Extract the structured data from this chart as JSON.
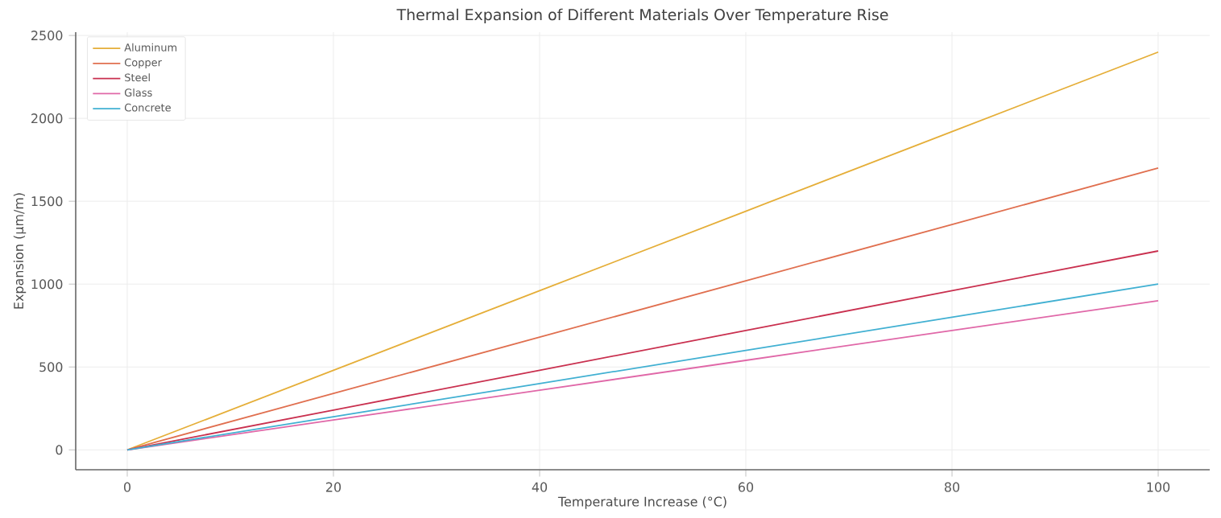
{
  "chart_data": {
    "type": "line",
    "title": "Thermal Expansion of Different Materials Over Temperature Rise",
    "xlabel": "Temperature Increase (°C)",
    "ylabel": "Expansion (µm/m)",
    "x": [
      0,
      20,
      40,
      60,
      80,
      100
    ],
    "series": [
      {
        "name": "Aluminum",
        "color": "#e5ae38",
        "values": [
          0,
          480,
          960,
          1440,
          1920,
          2400
        ]
      },
      {
        "name": "Copper",
        "color": "#e06f4f",
        "values": [
          0,
          340,
          680,
          1020,
          1360,
          1700
        ]
      },
      {
        "name": "Steel",
        "color": "#c9304f",
        "values": [
          0,
          240,
          480,
          720,
          960,
          1200
        ]
      },
      {
        "name": "Glass",
        "color": "#e068a8",
        "values": [
          0,
          180,
          360,
          540,
          720,
          900
        ]
      },
      {
        "name": "Concrete",
        "color": "#41b0d2",
        "values": [
          0,
          200,
          400,
          600,
          800,
          1000
        ]
      }
    ],
    "xlim": [
      -5,
      105
    ],
    "ylim": [
      -120,
      2520
    ],
    "xticks": [
      0,
      20,
      40,
      60,
      80,
      100
    ],
    "yticks": [
      0,
      500,
      1000,
      1500,
      2000,
      2500
    ],
    "grid": true,
    "legend": "top left",
    "marker": "none",
    "line_style": "solid"
  }
}
